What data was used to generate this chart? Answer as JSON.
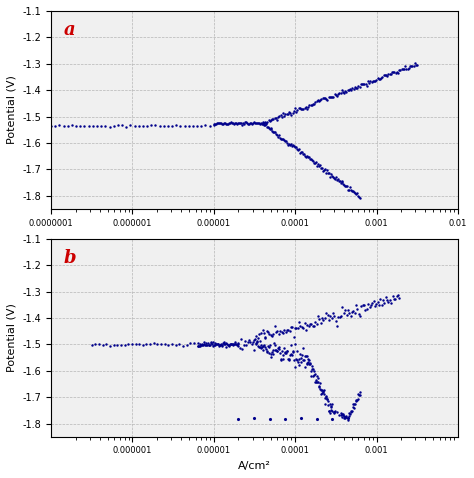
{
  "plot_color": "#00008B",
  "bg_color": "#f0f0f0",
  "grid_color": "#b0b0b0",
  "label_a": "a",
  "label_b": "b",
  "label_color": "#cc0000",
  "ylabel": "Potential (V)",
  "xlabel": "A/cm²",
  "subplot_a": {
    "ylim": [
      -1.85,
      -1.1
    ],
    "yticks": [
      -1.8,
      -1.7,
      -1.6,
      -1.5,
      -1.4,
      -1.3,
      -1.2,
      -1.1
    ],
    "xlim": [
      1e-07,
      0.01
    ],
    "xticks": [
      1e-07,
      1e-06,
      1e-05,
      0.0001,
      0.001,
      0.01
    ],
    "xticklabels": [
      "0.0000001",
      "0.000001",
      "0.00001",
      "0.0001",
      "0.001",
      "0.01"
    ],
    "ecorr": -1.525,
    "icorr_log": -4.4
  },
  "subplot_b": {
    "ylim": [
      -1.85,
      -1.1
    ],
    "yticks": [
      -1.8,
      -1.7,
      -1.6,
      -1.5,
      -1.4,
      -1.3,
      -1.2,
      -1.1
    ],
    "xlim": [
      1e-07,
      0.01
    ],
    "xticks": [
      1e-06,
      1e-05,
      0.0001,
      0.001
    ],
    "xticklabels": [
      "0.000001",
      "0.00001",
      "0.0001",
      "0.001"
    ],
    "ecorr": -1.5,
    "icorr_log": -4.7
  }
}
